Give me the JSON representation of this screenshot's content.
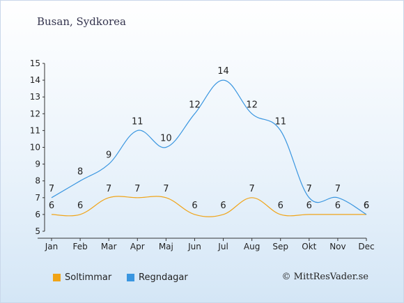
{
  "header": {
    "location": "Busan, Sydkorea"
  },
  "colors": {
    "sun": "#f0a418",
    "rain": "#3a96e0"
  },
  "chart_data": {
    "type": "line",
    "categories": [
      "Jan",
      "Feb",
      "Mar",
      "Apr",
      "Maj",
      "Jun",
      "Jul",
      "Aug",
      "Sep",
      "Okt",
      "Nov",
      "Dec"
    ],
    "ylim": [
      5,
      15
    ],
    "yticks": [
      5,
      6,
      7,
      8,
      9,
      10,
      11,
      12,
      13,
      14,
      15
    ],
    "grid": false,
    "legend_position": "bottom-left",
    "series": [
      {
        "name": "Soltimmar",
        "color": "#f0a418",
        "values": [
          6,
          6,
          7,
          7,
          7,
          6,
          6,
          7,
          6,
          6,
          6,
          6
        ]
      },
      {
        "name": "Regndagar",
        "color": "#3a96e0",
        "values": [
          7,
          8,
          9,
          11,
          10,
          12,
          14,
          12,
          11,
          7,
          7,
          6
        ]
      }
    ]
  },
  "legend": {
    "sun_label": "Soltimmar",
    "rain_label": "Regndagar"
  },
  "footer": {
    "credit": "© MittResVader.se"
  }
}
